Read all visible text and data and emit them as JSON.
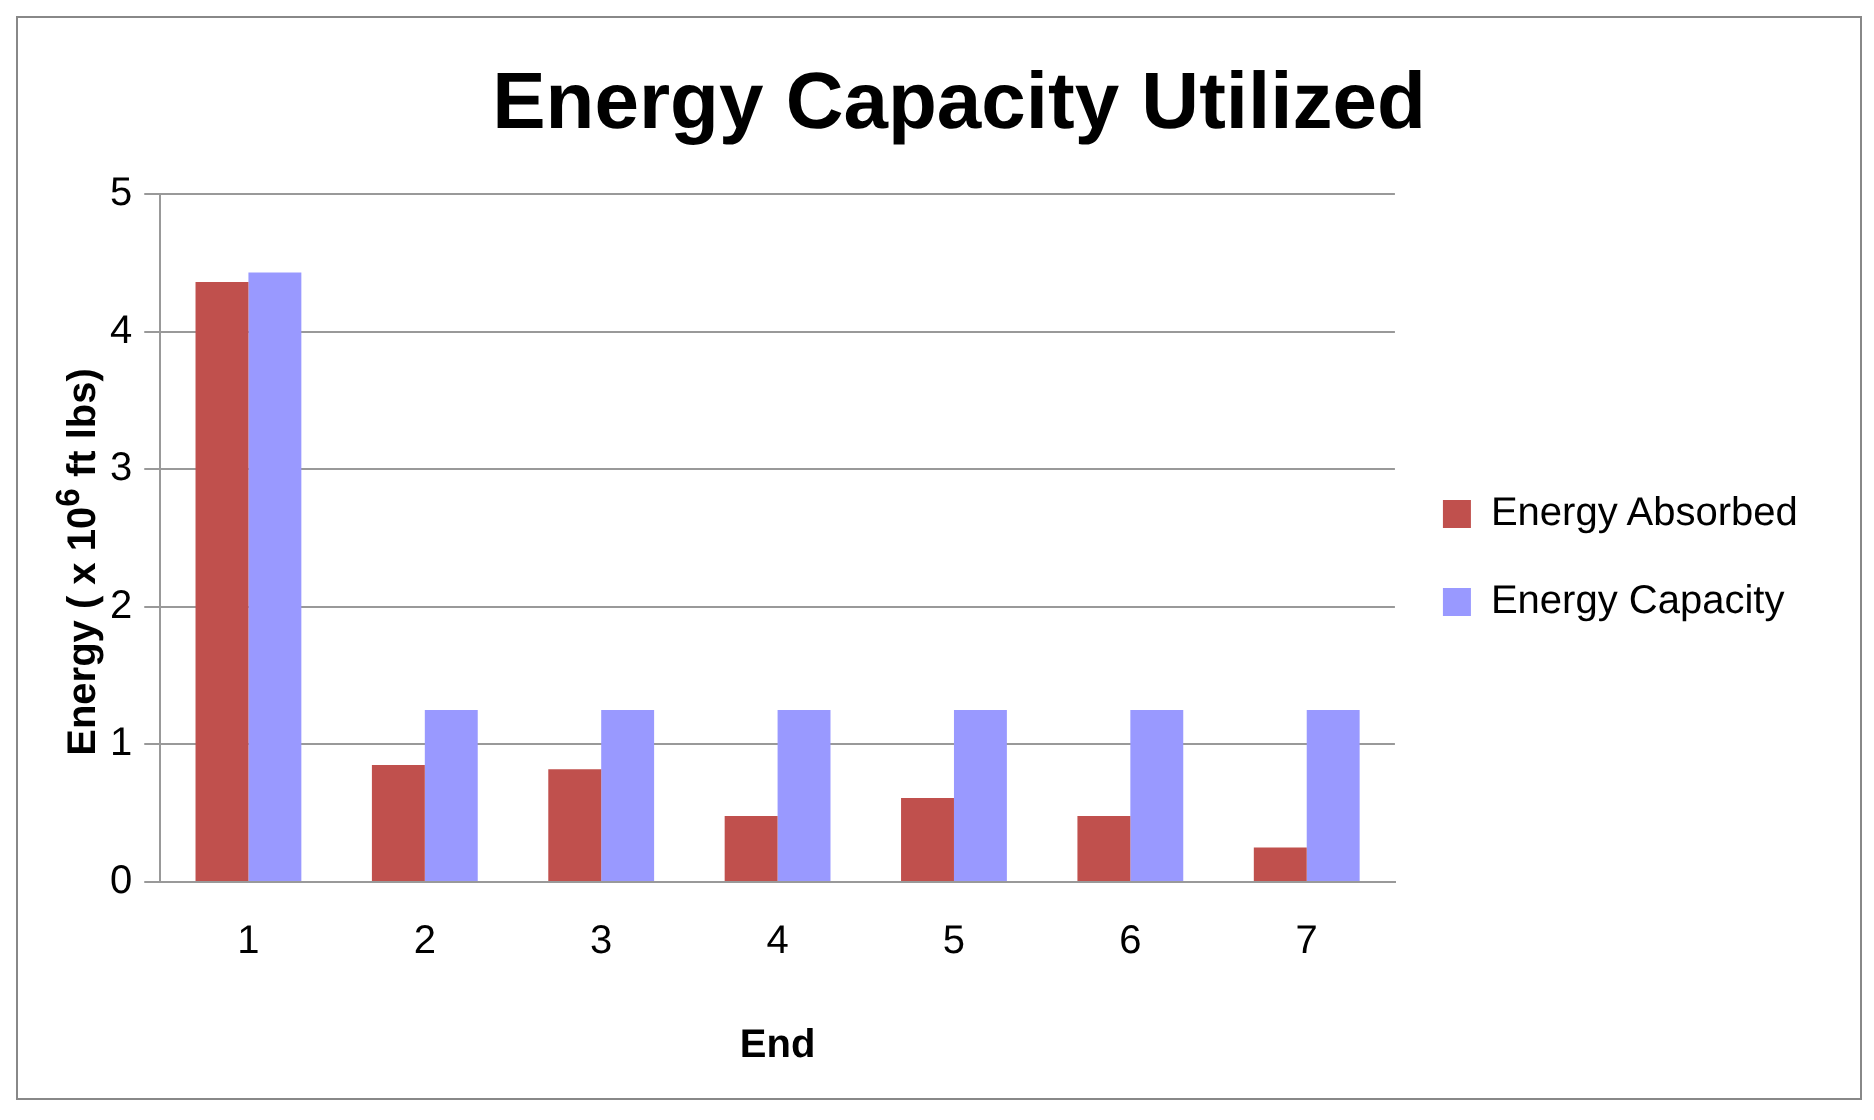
{
  "chart_data": {
    "type": "bar",
    "title": "Energy Capacity Utilized",
    "xlabel": "End",
    "ylabel": "Energy ( x 10$^{6}$ ft lbs)",
    "categories": [
      "1",
      "2",
      "3",
      "4",
      "5",
      "6",
      "7"
    ],
    "series": [
      {
        "name": "Energy Absorbed",
        "color": "#c0504d",
        "values": [
          4.36,
          0.85,
          0.82,
          0.48,
          0.61,
          0.48,
          0.25
        ]
      },
      {
        "name": "Energy Capacity",
        "color": "#9999ff",
        "values": [
          4.43,
          1.25,
          1.25,
          1.25,
          1.25,
          1.25,
          1.25
        ]
      }
    ],
    "ylim": [
      0,
      5
    ],
    "yticks": [
      0,
      1,
      2,
      3,
      4,
      5
    ],
    "grid": "y",
    "legend": "right"
  }
}
